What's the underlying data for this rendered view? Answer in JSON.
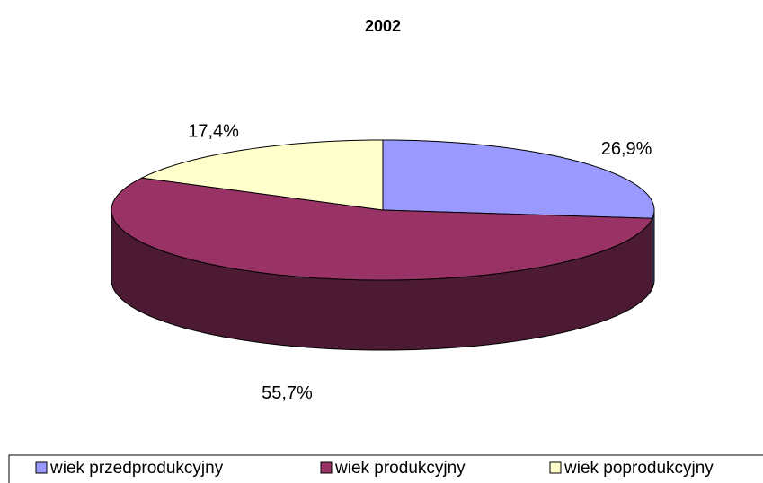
{
  "chart_data": {
    "type": "pie",
    "title": "2002",
    "categories": [
      "wiek przedprodukcyjny",
      "wiek produkcyjny",
      "wiek poprodukcyjny"
    ],
    "values": [
      26.9,
      55.7,
      17.4
    ],
    "value_labels": [
      "26,9%",
      "55,7%",
      "17,4%"
    ],
    "colors": [
      "#9999ff",
      "#993366",
      "#ffffcc"
    ],
    "legend": "bottom"
  }
}
